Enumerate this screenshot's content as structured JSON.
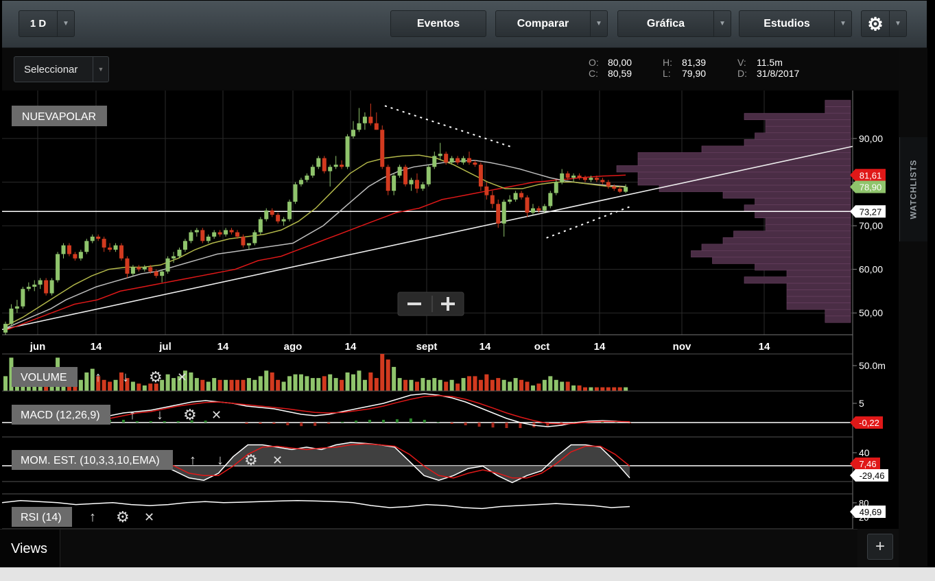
{
  "toolbar": {
    "period": "1 D",
    "events": "Eventos",
    "compare": "Comparar",
    "chart": "Gráfica",
    "studies": "Estudios"
  },
  "select_label": "Seleccionar",
  "ohlc": {
    "o_key": "O:",
    "o": "80,00",
    "c_key": "C:",
    "c": "80,59",
    "h_key": "H:",
    "h": "81,39",
    "l_key": "L:",
    "l": "79,90",
    "v_key": "V:",
    "v": "11.5m",
    "d_key": "D:",
    "d": "31/8/2017"
  },
  "watchlists_label": "WATCHLISTS",
  "views_label": "Views",
  "add_view": "+",
  "colors": {
    "up": "#8fc46c",
    "down": "#d23a1f",
    "ma_slow": "#e01818",
    "ma_mid": "#bdbdbd",
    "ma_fast": "#b3b84a",
    "volume_profile": "#4a2d45"
  },
  "chart_data": [
    {
      "type": "candlestick",
      "title": "NUEVAPOLAR",
      "y_ticks": [
        "90,00",
        "80,00",
        "70,00",
        "60,00",
        "50,00"
      ],
      "y_tick_values": [
        90,
        80,
        70,
        60,
        50
      ],
      "ylim": [
        45,
        101
      ],
      "x_ticks": [
        "jun",
        "14",
        "jul",
        "14",
        "ago",
        "14",
        "sept",
        "14",
        "oct",
        "14",
        "nov",
        "14"
      ],
      "price_labels": [
        {
          "text": "81,61",
          "value": 81.61,
          "color": "#e01818"
        },
        {
          "text": "78,90",
          "value": 78.9,
          "color": "#8fc46c"
        },
        {
          "text": "73,27",
          "value": 73.27,
          "color": "#ffffff"
        }
      ],
      "horizontal_line": 73.27,
      "candles": [
        [
          45.5,
          48,
          45,
          47.5
        ],
        [
          47.5,
          52,
          47,
          51
        ],
        [
          51,
          53,
          50,
          51.5
        ],
        [
          51.5,
          56,
          51,
          55.5
        ],
        [
          55.5,
          57,
          55,
          56
        ],
        [
          56,
          57.5,
          55,
          56.5
        ],
        [
          56.5,
          58,
          55.5,
          57.5
        ],
        [
          57.5,
          58,
          54,
          54.5
        ],
        [
          54.5,
          58,
          54,
          57.5
        ],
        [
          57.5,
          64,
          57,
          63.5
        ],
        [
          63.5,
          66,
          62.5,
          65.5
        ],
        [
          65.5,
          66,
          63,
          63.5
        ],
        [
          63.5,
          64,
          62,
          62.5
        ],
        [
          62.5,
          64.5,
          62,
          64
        ],
        [
          64,
          67,
          63.5,
          66.5
        ],
        [
          66.5,
          68,
          66,
          67.5
        ],
        [
          67.5,
          68,
          66.5,
          67
        ],
        [
          67,
          67.5,
          64,
          65
        ],
        [
          65,
          66,
          64,
          64.5
        ],
        [
          64.5,
          66,
          64,
          65.5
        ],
        [
          65.5,
          66,
          62,
          62.5
        ],
        [
          62.5,
          63,
          58,
          59
        ],
        [
          59,
          61,
          58.5,
          60.5
        ],
        [
          60.5,
          61,
          59.5,
          60
        ],
        [
          60,
          61,
          59.5,
          60.5
        ],
        [
          60.5,
          61,
          59,
          59.5
        ],
        [
          59.5,
          60,
          58,
          58.5
        ],
        [
          58.5,
          60,
          57,
          59.5
        ],
        [
          59.5,
          63,
          59,
          62.5
        ],
        [
          62.5,
          64,
          61.5,
          63
        ],
        [
          63,
          65,
          62.5,
          64.5
        ],
        [
          64.5,
          67,
          64,
          66.5
        ],
        [
          66.5,
          69,
          66,
          68.5
        ],
        [
          68.5,
          69.5,
          67.5,
          69
        ],
        [
          69,
          69.5,
          66,
          66.5
        ],
        [
          66.5,
          68,
          66,
          67.5
        ],
        [
          67.5,
          69,
          67,
          68.5
        ],
        [
          68.5,
          69,
          67.5,
          68
        ],
        [
          68,
          69.5,
          67.5,
          69
        ],
        [
          69,
          69.5,
          68,
          68.5
        ],
        [
          68.5,
          69,
          67,
          67.5
        ],
        [
          67.5,
          68,
          65,
          65.5
        ],
        [
          65.5,
          66,
          64.5,
          66
        ],
        [
          66,
          69,
          65.5,
          68.5
        ],
        [
          68.5,
          72,
          68,
          71.5
        ],
        [
          71.5,
          74,
          71,
          73.5
        ],
        [
          73.5,
          74,
          72,
          72.5
        ],
        [
          72.5,
          73,
          70.5,
          71
        ],
        [
          71,
          72,
          70,
          71.5
        ],
        [
          71.5,
          76,
          71,
          75.5
        ],
        [
          75.5,
          80,
          75,
          79.5
        ],
        [
          79.5,
          81,
          79,
          80.5
        ],
        [
          80.5,
          82,
          80,
          81.5
        ],
        [
          81.5,
          84,
          81,
          83.5
        ],
        [
          83.5,
          86,
          83,
          85.5
        ],
        [
          85.5,
          86,
          82,
          82.5
        ],
        [
          82.5,
          84,
          79,
          83.5
        ],
        [
          83.5,
          86,
          83,
          84
        ],
        [
          84,
          85,
          83,
          83.5
        ],
        [
          83.5,
          91,
          83,
          90.5
        ],
        [
          90.5,
          94,
          90,
          92
        ],
        [
          92,
          97,
          91.5,
          93.5
        ],
        [
          93.5,
          96,
          92,
          95
        ],
        [
          95,
          98,
          93,
          93.5
        ],
        [
          93.5,
          96,
          92,
          92
        ],
        [
          92,
          93,
          83,
          83.5
        ],
        [
          83.5,
          84,
          77,
          78
        ],
        [
          78,
          82,
          77,
          81.5
        ],
        [
          81.5,
          84,
          81,
          83.5
        ],
        [
          83.5,
          84,
          79,
          79.5
        ],
        [
          79.5,
          81,
          78,
          80.5
        ],
        [
          80.5,
          82,
          77.5,
          78.5
        ],
        [
          78.5,
          80,
          78,
          79.5
        ],
        [
          79.5,
          84,
          79,
          83.5
        ],
        [
          83.5,
          87,
          83,
          86
        ],
        [
          86,
          89,
          85,
          86.5
        ],
        [
          86.5,
          87,
          84,
          84.5
        ],
        [
          84.5,
          86,
          84,
          85.5
        ],
        [
          85.5,
          86,
          84,
          84.5
        ],
        [
          84.5,
          86,
          84,
          85.5
        ],
        [
          85.5,
          87,
          84,
          84.5
        ],
        [
          84.5,
          85,
          83.5,
          84
        ],
        [
          84,
          84.5,
          78,
          79
        ],
        [
          79,
          80,
          76,
          77
        ],
        [
          77,
          78,
          74,
          75
        ],
        [
          75,
          76,
          69.5,
          70.5
        ],
        [
          70.5,
          76,
          67.5,
          75.5
        ],
        [
          75.5,
          77,
          75,
          76
        ],
        [
          76,
          78,
          75.5,
          77.5
        ],
        [
          77.5,
          78,
          76,
          76.5
        ],
        [
          76.5,
          77,
          72,
          73
        ],
        [
          73,
          75,
          72.5,
          74
        ],
        [
          74,
          74.5,
          73,
          73.5
        ],
        [
          73.5,
          75,
          73,
          74.5
        ],
        [
          74.5,
          78,
          74,
          77.5
        ],
        [
          77.5,
          80.5,
          77,
          80
        ],
        [
          80,
          83,
          79.5,
          82
        ],
        [
          82,
          82.5,
          80.5,
          81
        ],
        [
          81,
          82,
          80,
          81.5
        ],
        [
          81.5,
          82,
          80.5,
          81
        ],
        [
          81,
          81.5,
          80,
          80.5
        ],
        [
          80.5,
          81.5,
          80,
          81
        ],
        [
          81,
          81.5,
          80,
          80.5
        ],
        [
          80.5,
          81,
          79.5,
          80
        ],
        [
          80,
          80.5,
          78.5,
          79
        ],
        [
          79,
          79.5,
          78,
          78.5
        ],
        [
          78.5,
          79,
          77.5,
          77.8
        ],
        [
          77.8,
          79.5,
          77.5,
          78.9
        ]
      ],
      "ma_slow": [
        46,
        47,
        48,
        49,
        50,
        51,
        52,
        52.5,
        53,
        54,
        55,
        55.5,
        56,
        56.5,
        57,
        57.5,
        58,
        58.5,
        59,
        59.5,
        60,
        61,
        62,
        62.5,
        63,
        64,
        65,
        66,
        67,
        68,
        69,
        70,
        71,
        72,
        73,
        73.5,
        74,
        75,
        76,
        76.5,
        77,
        77.5,
        78,
        78.5,
        79,
        79.5,
        80,
        80.2,
        80.5,
        80.7,
        81,
        81.2,
        81.4,
        81.5,
        81.6
      ],
      "ma_mid": [
        46.5,
        48,
        49.5,
        51,
        53,
        54.5,
        56,
        57,
        58,
        59,
        59.5,
        60.5,
        61.5,
        62.5,
        63.5,
        64,
        64.5,
        65,
        65.5,
        66,
        68,
        70,
        73,
        76,
        79,
        81,
        82.5,
        83.5,
        84,
        84.5,
        84.8,
        85,
        84.5,
        83.8,
        83,
        82,
        81,
        80.3,
        79.8,
        79.5,
        79.2,
        79
      ],
      "ma_fast": [
        47,
        49,
        51.5,
        54,
        56.5,
        58.5,
        60,
        60.5,
        60.5,
        61,
        62.5,
        64.5,
        66,
        67,
        67.5,
        68,
        69,
        71,
        74,
        78,
        82,
        84.5,
        85.5,
        86,
        86.2,
        85.5,
        84,
        82,
        80,
        78.5,
        78.5,
        79.5,
        80,
        80,
        79.5,
        79,
        78.9
      ],
      "trendline": [
        [
          0,
          46.2
        ],
        [
          1.0,
          88.2
        ]
      ],
      "projection_upper": [
        [
          0.45,
          97.5
        ],
        [
          0.6,
          88.0
        ]
      ],
      "projection_lower": [
        [
          0.64,
          67.2
        ],
        [
          0.74,
          74.5
        ]
      ],
      "volume_profile": [
        {
          "price": 98,
          "len": 0.12
        },
        {
          "price": 96.5,
          "len": 0.12
        },
        {
          "price": 95,
          "len": 0.5
        },
        {
          "price": 93.5,
          "len": 0.4
        },
        {
          "price": 92,
          "len": 0.4
        },
        {
          "price": 90.5,
          "len": 0.45
        },
        {
          "price": 89,
          "len": 0.5
        },
        {
          "price": 87.5,
          "len": 0.7
        },
        {
          "price": 86,
          "len": 1.0
        },
        {
          "price": 84.5,
          "len": 1.0
        },
        {
          "price": 83,
          "len": 1.1
        },
        {
          "price": 81.5,
          "len": 1.0
        },
        {
          "price": 80,
          "len": 1.0
        },
        {
          "price": 78.5,
          "len": 0.9
        },
        {
          "price": 77,
          "len": 0.6
        },
        {
          "price": 75.5,
          "len": 0.45
        },
        {
          "price": 74,
          "len": 0.5
        },
        {
          "price": 72.5,
          "len": 0.45
        },
        {
          "price": 71,
          "len": 0.4
        },
        {
          "price": 69.5,
          "len": 0.4
        },
        {
          "price": 68,
          "len": 0.55
        },
        {
          "price": 66.5,
          "len": 0.6
        },
        {
          "price": 65,
          "len": 0.7
        },
        {
          "price": 63.5,
          "len": 0.75
        },
        {
          "price": 62,
          "len": 0.65
        },
        {
          "price": 60.5,
          "len": 0.45
        },
        {
          "price": 59,
          "len": 0.3
        },
        {
          "price": 57.5,
          "len": 0.5
        },
        {
          "price": 56,
          "len": 0.3
        },
        {
          "price": 54.5,
          "len": 0.3
        },
        {
          "price": 53,
          "len": 0.3
        },
        {
          "price": 51.5,
          "len": 0.3
        },
        {
          "price": 50,
          "len": 0.12
        },
        {
          "price": 48.5,
          "len": 0.12
        }
      ]
    },
    {
      "type": "bar",
      "title": "VOLUME",
      "y_ticks": [
        "50.0m"
      ],
      "values": [
        0.4,
        0.9,
        0.3,
        0.2,
        0.3,
        0.35,
        0.5,
        0.3,
        0.2,
        0.9,
        0.45,
        0.3,
        0.25,
        0.3,
        0.5,
        0.6,
        0.4,
        0.3,
        0.25,
        0.3,
        0.5,
        0.35,
        0.25,
        0.2,
        0.15,
        0.2,
        0.2,
        0.3,
        0.45,
        0.35,
        0.4,
        0.55,
        0.5,
        0.35,
        0.3,
        0.25,
        0.35,
        0.3,
        0.3,
        0.3,
        0.3,
        0.3,
        0.35,
        0.3,
        0.4,
        0.55,
        0.5,
        0.3,
        0.25,
        0.4,
        0.45,
        0.45,
        0.4,
        0.35,
        0.35,
        0.4,
        0.45,
        0.35,
        0.3,
        0.5,
        0.45,
        0.55,
        0.3,
        0.5,
        0.35,
        1.0,
        0.85,
        0.65,
        0.35,
        0.3,
        0.3,
        0.25,
        0.35,
        0.3,
        0.35,
        0.3,
        0.25,
        0.3,
        0.2,
        0.35,
        0.4,
        0.4,
        0.3,
        0.45,
        0.3,
        0.35,
        0.3,
        0.25,
        0.35,
        0.3,
        0.25,
        0.15,
        0.2,
        0.3,
        0.4,
        0.3,
        0.25,
        0.25,
        0.15,
        0.15,
        0.1,
        0.1,
        0.1,
        0.1,
        0.1,
        0.1,
        0.1,
        0.1
      ]
    },
    {
      "type": "line",
      "title": "MACD (12,26,9)",
      "y_ticks": [
        "5"
      ],
      "last_value": "-0,22",
      "macd": [
        0.2,
        0.3,
        0.35,
        0.4,
        0.5,
        0.6,
        0.7,
        0.75,
        0.7,
        0.65,
        0.55,
        0.5,
        0.45,
        0.35,
        0.25,
        0.2,
        0.25,
        0.35,
        0.45,
        0.55,
        0.65,
        0.8,
        0.95,
        1.0,
        0.95,
        0.85,
        0.7,
        0.5,
        0.3,
        0.1,
        -0.05,
        -0.15,
        -0.2,
        -0.15,
        -0.05,
        0.0,
        0.02,
        0.0,
        -0.05
      ],
      "signal": [
        0.1,
        0.2,
        0.3,
        0.35,
        0.45,
        0.55,
        0.62,
        0.68,
        0.7,
        0.65,
        0.6,
        0.55,
        0.5,
        0.45,
        0.38,
        0.32,
        0.3,
        0.32,
        0.38,
        0.45,
        0.55,
        0.68,
        0.8,
        0.9,
        0.93,
        0.9,
        0.8,
        0.65,
        0.48,
        0.3,
        0.15,
        0.02,
        -0.08,
        -0.1,
        -0.08,
        -0.03,
        -0.01,
        -0.01,
        -0.02
      ]
    },
    {
      "type": "line",
      "title": "MOM. EST. (10,3,3,10,EMA)",
      "y_ticks": [
        "40"
      ],
      "last_values": [
        "7,46",
        "-29,46"
      ],
      "k": [
        0.5,
        0.6,
        0.55,
        0.4,
        0.25,
        0.2,
        0.35,
        0.7,
        0.95,
        0.95,
        0.9,
        0.85,
        0.9,
        0.85,
        0.95,
        1.0,
        0.98,
        0.95,
        0.9,
        0.6,
        0.3,
        0.2,
        0.3,
        0.45,
        0.5,
        0.3,
        0.15,
        0.3,
        0.4,
        0.7,
        0.95,
        0.95,
        0.9,
        0.6,
        0.25
      ],
      "d": [
        0.45,
        0.5,
        0.55,
        0.5,
        0.35,
        0.3,
        0.3,
        0.5,
        0.75,
        0.9,
        0.92,
        0.88,
        0.85,
        0.88,
        0.9,
        0.95,
        0.97,
        0.95,
        0.92,
        0.75,
        0.5,
        0.3,
        0.25,
        0.35,
        0.42,
        0.35,
        0.25,
        0.25,
        0.35,
        0.55,
        0.8,
        0.92,
        0.92,
        0.75,
        0.5
      ]
    },
    {
      "type": "line",
      "title": "RSI (14)",
      "y_ticks": [
        "80",
        "20"
      ],
      "last_value": "49,69",
      "rsi": [
        0.7,
        0.8,
        0.75,
        0.7,
        0.6,
        0.65,
        0.7,
        0.6,
        0.55,
        0.6,
        0.7,
        0.75,
        0.7,
        0.72,
        0.75,
        0.78,
        0.8,
        0.78,
        0.75,
        0.7,
        0.55,
        0.45,
        0.5,
        0.6,
        0.55,
        0.45,
        0.4,
        0.5,
        0.55,
        0.6,
        0.65,
        0.6,
        0.55,
        0.45,
        0.5
      ]
    }
  ]
}
